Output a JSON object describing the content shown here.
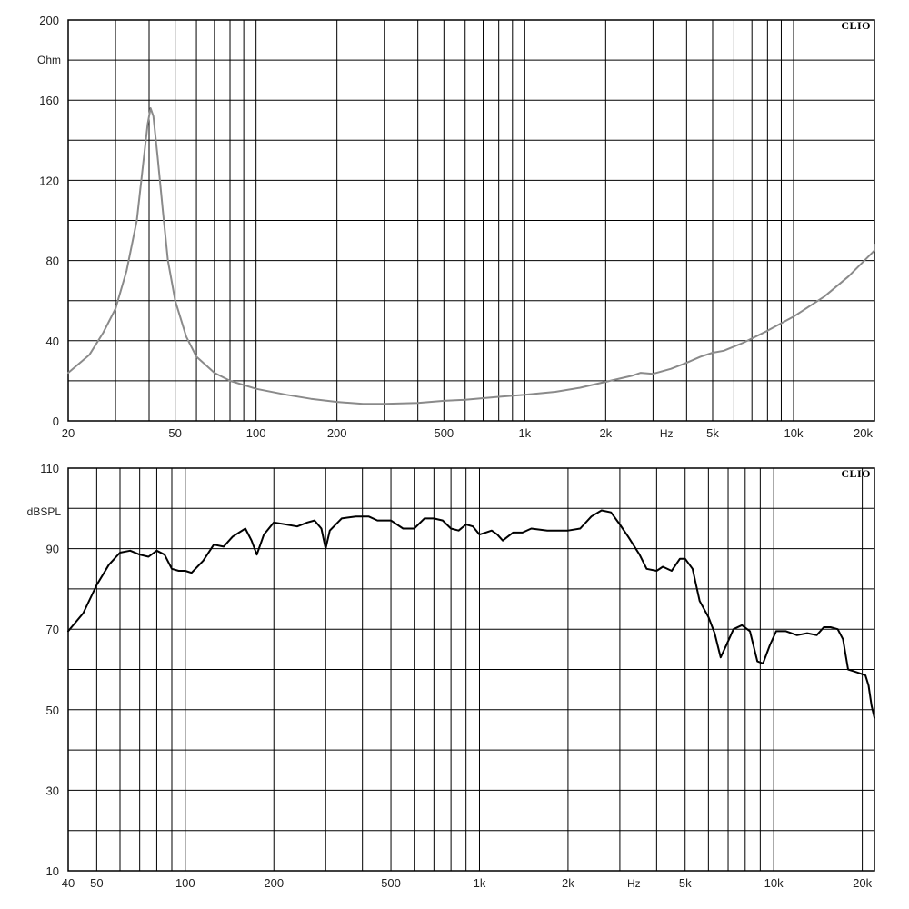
{
  "chart_data": [
    {
      "type": "line",
      "brand": "CLIO",
      "ylabel": "Ohm",
      "xlabel": "Hz",
      "x_scale": "log",
      "xlim": [
        20,
        20000
      ],
      "ylim": [
        0,
        200
      ],
      "grid": true,
      "x_tick_labels": [
        {
          "value": 20,
          "label": "20"
        },
        {
          "value": 50,
          "label": "50"
        },
        {
          "value": 100,
          "label": "100"
        },
        {
          "value": 200,
          "label": "200"
        },
        {
          "value": 500,
          "label": "500"
        },
        {
          "value": 1000,
          "label": "1k"
        },
        {
          "value": 2000,
          "label": "2k"
        },
        {
          "value": 5000,
          "label": "5k"
        },
        {
          "value": 10000,
          "label": "10k"
        },
        {
          "value": 20000,
          "label": "20k"
        }
      ],
      "y_tick_labels": [
        {
          "value": 200,
          "label": "200"
        },
        {
          "value": 160,
          "label": "160"
        },
        {
          "value": 120,
          "label": "120"
        },
        {
          "value": 80,
          "label": "80"
        },
        {
          "value": 40,
          "label": "40"
        },
        {
          "value": 0,
          "label": "0"
        }
      ],
      "y_gridlines": [
        0,
        20,
        40,
        60,
        80,
        100,
        120,
        140,
        160,
        180,
        200
      ],
      "line_color": "#8a8a8a",
      "series": [
        {
          "points": [
            [
              20,
              24
            ],
            [
              24,
              33
            ],
            [
              27,
              44
            ],
            [
              30,
              56
            ],
            [
              33,
              75
            ],
            [
              36,
              100
            ],
            [
              38,
              128
            ],
            [
              39.5,
              148
            ],
            [
              40.5,
              156
            ],
            [
              41.5,
              152
            ],
            [
              43,
              132
            ],
            [
              45,
              105
            ],
            [
              47,
              80
            ],
            [
              50,
              60
            ],
            [
              55,
              42
            ],
            [
              60,
              32
            ],
            [
              70,
              24
            ],
            [
              80,
              20
            ],
            [
              100,
              16
            ],
            [
              130,
              13
            ],
            [
              160,
              11
            ],
            [
              200,
              9.5
            ],
            [
              250,
              8.5
            ],
            [
              300,
              8.5
            ],
            [
              400,
              9
            ],
            [
              500,
              10
            ],
            [
              600,
              10.5
            ],
            [
              800,
              12
            ],
            [
              1000,
              13
            ],
            [
              1300,
              14.5
            ],
            [
              1600,
              16.5
            ],
            [
              2000,
              19.5
            ],
            [
              2500,
              22.5
            ],
            [
              2700,
              24
            ],
            [
              3000,
              23.5
            ],
            [
              3500,
              26
            ],
            [
              4000,
              29
            ],
            [
              4500,
              32
            ],
            [
              5000,
              34
            ],
            [
              5500,
              35
            ],
            [
              6500,
              39
            ],
            [
              8000,
              45
            ],
            [
              10000,
              52
            ],
            [
              13000,
              62
            ],
            [
              16000,
              72
            ],
            [
              20000,
              85
            ],
            [
              21500,
              88
            ]
          ]
        }
      ]
    },
    {
      "type": "line",
      "brand": "CLIO",
      "ylabel": "dBSPL",
      "xlabel": "Hz",
      "x_scale": "log",
      "xlim": [
        40,
        22000
      ],
      "ylim": [
        10,
        110
      ],
      "grid": true,
      "x_tick_labels": [
        {
          "value": 40,
          "label": "40"
        },
        {
          "value": 50,
          "label": "50"
        },
        {
          "value": 100,
          "label": "100"
        },
        {
          "value": 200,
          "label": "200"
        },
        {
          "value": 500,
          "label": "500"
        },
        {
          "value": 1000,
          "label": "1k"
        },
        {
          "value": 2000,
          "label": "2k"
        },
        {
          "value": 5000,
          "label": "5k"
        },
        {
          "value": 10000,
          "label": "10k"
        },
        {
          "value": 20000,
          "label": "20k"
        }
      ],
      "y_tick_labels": [
        {
          "value": 110,
          "label": "110"
        },
        {
          "value": 90,
          "label": "90"
        },
        {
          "value": 70,
          "label": "70"
        },
        {
          "value": 50,
          "label": "50"
        },
        {
          "value": 30,
          "label": "30"
        },
        {
          "value": 10,
          "label": "10"
        }
      ],
      "y_gridlines": [
        10,
        20,
        30,
        40,
        50,
        60,
        70,
        80,
        90,
        100,
        110
      ],
      "line_color": "#000000",
      "series": [
        {
          "points": [
            [
              40,
              69.5
            ],
            [
              45,
              74
            ],
            [
              50,
              81
            ],
            [
              55,
              86
            ],
            [
              60,
              89
            ],
            [
              65,
              89.5
            ],
            [
              70,
              88.5
            ],
            [
              75,
              88
            ],
            [
              80,
              89.5
            ],
            [
              85,
              88.5
            ],
            [
              90,
              85
            ],
            [
              95,
              84.5
            ],
            [
              100,
              84.5
            ],
            [
              105,
              84
            ],
            [
              115,
              87
            ],
            [
              125,
              91
            ],
            [
              135,
              90.5
            ],
            [
              145,
              93
            ],
            [
              160,
              95
            ],
            [
              168,
              92
            ],
            [
              175,
              88.5
            ],
            [
              185,
              93.5
            ],
            [
              200,
              96.5
            ],
            [
              220,
              96
            ],
            [
              240,
              95.5
            ],
            [
              260,
              96.5
            ],
            [
              275,
              97
            ],
            [
              290,
              95
            ],
            [
              300,
              90
            ],
            [
              310,
              94.5
            ],
            [
              340,
              97.5
            ],
            [
              380,
              98
            ],
            [
              420,
              98
            ],
            [
              450,
              97
            ],
            [
              500,
              97
            ],
            [
              550,
              95
            ],
            [
              600,
              95
            ],
            [
              650,
              97.5
            ],
            [
              700,
              97.5
            ],
            [
              750,
              97
            ],
            [
              800,
              95
            ],
            [
              850,
              94.5
            ],
            [
              900,
              96
            ],
            [
              950,
              95.5
            ],
            [
              1000,
              93.5
            ],
            [
              1050,
              94
            ],
            [
              1100,
              94.5
            ],
            [
              1150,
              93.5
            ],
            [
              1200,
              92
            ],
            [
              1300,
              94
            ],
            [
              1400,
              94
            ],
            [
              1500,
              95
            ],
            [
              1700,
              94.5
            ],
            [
              2000,
              94.5
            ],
            [
              2200,
              95
            ],
            [
              2400,
              98
            ],
            [
              2600,
              99.5
            ],
            [
              2800,
              99
            ],
            [
              3000,
              96
            ],
            [
              3200,
              93
            ],
            [
              3500,
              88.5
            ],
            [
              3700,
              85
            ],
            [
              4000,
              84.5
            ],
            [
              4200,
              85.5
            ],
            [
              4500,
              84.5
            ],
            [
              4800,
              87.5
            ],
            [
              5000,
              87.5
            ],
            [
              5300,
              85
            ],
            [
              5600,
              77
            ],
            [
              6000,
              73
            ],
            [
              6300,
              69
            ],
            [
              6600,
              63
            ],
            [
              6900,
              66
            ],
            [
              7300,
              70
            ],
            [
              7800,
              71
            ],
            [
              8300,
              69.5
            ],
            [
              8800,
              62
            ],
            [
              9200,
              61.5
            ],
            [
              9700,
              66
            ],
            [
              10200,
              69.5
            ],
            [
              11000,
              69.5
            ],
            [
              12000,
              68.5
            ],
            [
              13000,
              69
            ],
            [
              14000,
              68.5
            ],
            [
              14800,
              70.5
            ],
            [
              15600,
              70.5
            ],
            [
              16500,
              70
            ],
            [
              17200,
              67.5
            ],
            [
              17900,
              60
            ],
            [
              18800,
              59.5
            ],
            [
              19700,
              59
            ],
            [
              20500,
              58.5
            ],
            [
              21000,
              56
            ],
            [
              21500,
              51
            ],
            [
              22000,
              48
            ]
          ]
        }
      ]
    }
  ]
}
